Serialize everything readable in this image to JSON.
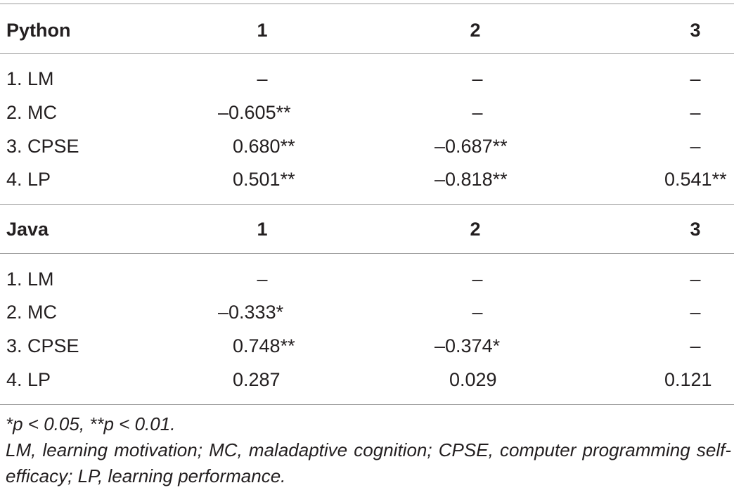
{
  "sections": [
    {
      "header": {
        "title": "Python",
        "col1": "1",
        "col2": "2",
        "col3": "3"
      },
      "rows": [
        {
          "label": "1. LM",
          "c1": "–",
          "c2": "–",
          "c3": "–"
        },
        {
          "label": "2. MC",
          "c1": "–0.605**",
          "c2": "–",
          "c3": "–"
        },
        {
          "label": "3. CPSE",
          "c1": "0.680**",
          "c2": "–0.687**",
          "c3": "–"
        },
        {
          "label": "4. LP",
          "c1": "0.501**",
          "c2": "–0.818**",
          "c3": "0.541**"
        }
      ]
    },
    {
      "header": {
        "title": "Java",
        "col1": "1",
        "col2": "2",
        "col3": "3"
      },
      "rows": [
        {
          "label": "1. LM",
          "c1": "–",
          "c2": "–",
          "c3": "–"
        },
        {
          "label": "2. MC",
          "c1": "–0.333*",
          "c2": "–",
          "c3": "–"
        },
        {
          "label": "3. CPSE",
          "c1": "0.748**",
          "c2": "–0.374*",
          "c3": "–"
        },
        {
          "label": "4. LP",
          "c1": "0.287",
          "c2": "0.029",
          "c3": "0.121"
        }
      ]
    }
  ],
  "footnotes": {
    "significance": "*p < 0.05, **p < 0.01.",
    "abbreviations": "LM, learning motivation; MC, maladaptive cognition; CPSE, computer programming self-efficacy; LP, learning performance."
  }
}
